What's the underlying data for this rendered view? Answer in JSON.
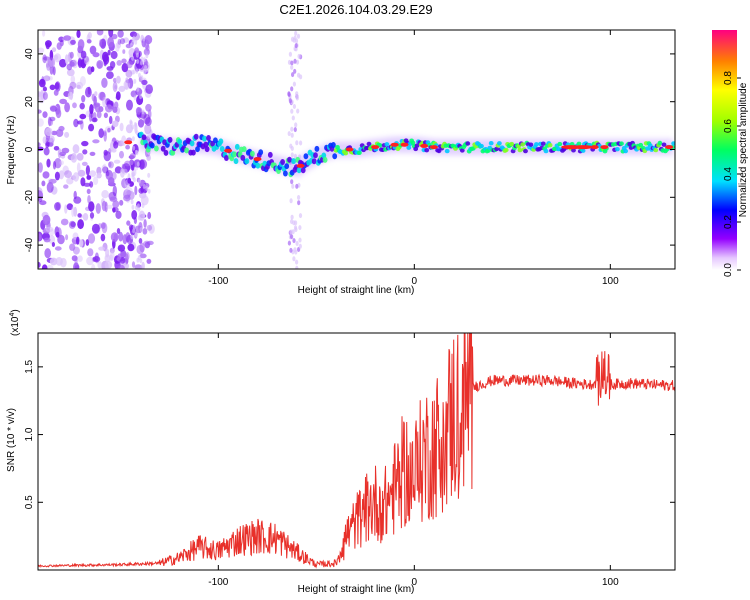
{
  "title": "C2E1.2026.104.03.29.E29",
  "colors": {
    "snr_line": "#e8302a",
    "ridge_bright": "#ff2020",
    "background": "#ffffff",
    "axis": "#000000"
  },
  "chart_data": [
    {
      "type": "heatmap",
      "name": "spectrogram",
      "title": "C2E1.2026.104.03.29.E29",
      "xlabel": "Height of straight line (km)",
      "ylabel": "Frequency (Hz)",
      "xlim": [
        -192,
        133
      ],
      "ylim": [
        -50,
        50
      ],
      "xticks": [
        -100,
        0,
        100
      ],
      "xtick_labels": [
        "-100",
        "0",
        "100"
      ],
      "yticks": [
        -40,
        -20,
        0,
        20,
        40
      ],
      "ytick_labels": [
        "-40",
        "-20",
        "0",
        "20",
        "40"
      ],
      "ridge": {
        "description": "Main signal ridge frequency (Hz) vs height (km)",
        "x": [
          -140,
          -130,
          -120,
          -110,
          -100,
          -90,
          -80,
          -70,
          -60,
          -55,
          -50,
          -45,
          -40,
          -30,
          -20,
          -10,
          0,
          10,
          20,
          40,
          60,
          80,
          100,
          120,
          133
        ],
        "y": [
          3,
          2,
          1,
          2,
          1,
          -2,
          -4,
          -6,
          -8,
          -5,
          -3,
          -1,
          0,
          0,
          1,
          2,
          2,
          1,
          1,
          1,
          1,
          1,
          1,
          1,
          1
        ]
      },
      "colorbar": {
        "label": "Normalized spectral amplitude",
        "range": [
          0,
          1
        ],
        "ticks": [
          0.0,
          0.2,
          0.4,
          0.6,
          0.8
        ],
        "tick_labels": [
          "0.0",
          "0.2",
          "0.4",
          "0.6",
          "0.8"
        ]
      }
    },
    {
      "type": "line",
      "name": "snr",
      "xlabel": "Height of straight line (km)",
      "ylabel": "SNR (10 * v/v)",
      "scale_label": "(x10",
      "scale_exp": "4",
      "scale_close": ")",
      "xlim": [
        -192,
        133
      ],
      "ylim": [
        0,
        17500
      ],
      "xticks": [
        -100,
        0,
        100
      ],
      "xtick_labels": [
        "-100",
        "0",
        "100"
      ],
      "yticks": [
        5000,
        10000,
        15000
      ],
      "ytick_labels": [
        "0.5",
        "1.0",
        "1.5"
      ],
      "envelope": {
        "description": "Approximate SNR envelope (raw values) vs height (km)",
        "x": [
          -192,
          -150,
          -130,
          -120,
          -110,
          -100,
          -90,
          -80,
          -70,
          -60,
          -50,
          -40,
          -35,
          -30,
          -25,
          -20,
          -15,
          -10,
          -5,
          0,
          5,
          10,
          15,
          20,
          25,
          30,
          40,
          50,
          60,
          70,
          80,
          90,
          95,
          97,
          100,
          110,
          120,
          133
        ],
        "y": [
          300,
          400,
          500,
          900,
          1700,
          1400,
          2200,
          2500,
          2300,
          1300,
          400,
          500,
          2500,
          3500,
          4500,
          5000,
          4800,
          6000,
          7500,
          7000,
          8500,
          9000,
          10000,
          11500,
          12500,
          13500,
          14000,
          14000,
          14000,
          14000,
          13800,
          13700,
          14000,
          14800,
          13700,
          13800,
          13700,
          13600
        ]
      }
    }
  ]
}
